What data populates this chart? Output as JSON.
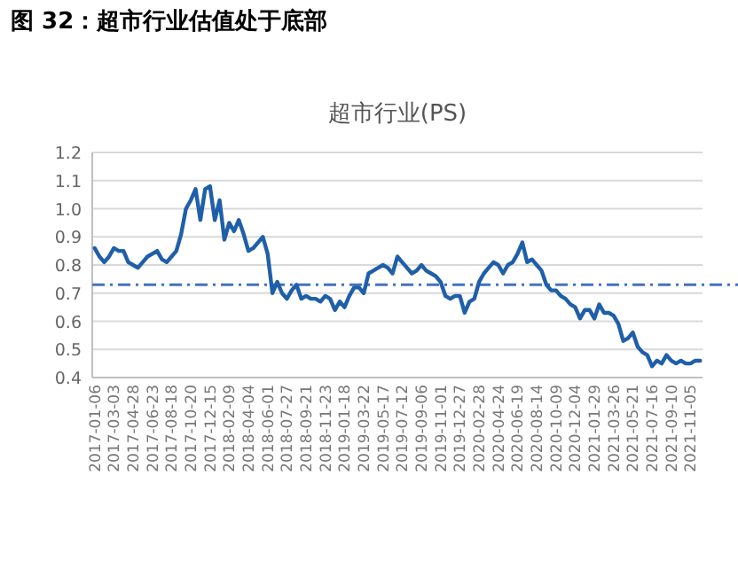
{
  "chart_data": {
    "type": "line",
    "title": "图 32：超市行业估值处于底部",
    "subtitle": "超市行业(PS)",
    "categories": [
      "2017-01-06",
      null,
      null,
      null,
      "2017-03-03",
      null,
      null,
      null,
      "2017-04-28",
      null,
      null,
      null,
      "2017-06-23",
      null,
      null,
      null,
      "2017-08-18",
      null,
      null,
      null,
      "2017-10-20",
      null,
      null,
      null,
      "2017-12-15",
      null,
      null,
      null,
      "2018-02-09",
      null,
      null,
      null,
      "2018-04-04",
      null,
      null,
      null,
      "2018-06-01",
      null,
      null,
      null,
      "2018-07-27",
      null,
      null,
      null,
      "2018-09-21",
      null,
      null,
      null,
      "2018-11-23",
      null,
      null,
      null,
      "2019-01-18",
      null,
      null,
      null,
      "2019-03-22",
      null,
      null,
      null,
      "2019-05-17",
      null,
      null,
      null,
      "2019-07-12",
      null,
      null,
      null,
      "2019-09-06",
      null,
      null,
      null,
      "2019-11-01",
      null,
      null,
      null,
      "2019-12-27",
      null,
      null,
      null,
      "2020-02-28",
      null,
      null,
      null,
      "2020-04-24",
      null,
      null,
      null,
      "2020-06-19",
      null,
      null,
      null,
      "2020-08-14",
      null,
      null,
      null,
      "2020-10-09",
      null,
      null,
      null,
      "2020-12-04",
      null,
      null,
      null,
      "2021-01-29",
      null,
      null,
      null,
      "2021-03-26",
      null,
      null,
      null,
      "2021-05-21",
      null,
      null,
      null,
      "2021-07-16",
      null,
      null,
      null,
      "2021-09-10",
      null,
      null,
      null,
      "2021-11-05",
      null,
      null
    ],
    "series": [
      {
        "color": "#1f5faa",
        "values": [
          0.86,
          0.83,
          0.81,
          0.83,
          0.86,
          0.85,
          0.85,
          0.81,
          0.8,
          0.79,
          0.81,
          0.83,
          0.84,
          0.85,
          0.82,
          0.81,
          0.83,
          0.85,
          0.91,
          1.0,
          1.03,
          1.07,
          0.96,
          1.07,
          1.08,
          0.96,
          1.03,
          0.89,
          0.95,
          0.92,
          0.96,
          0.91,
          0.85,
          0.86,
          0.88,
          0.9,
          0.84,
          0.7,
          0.74,
          0.7,
          0.68,
          0.71,
          0.73,
          0.68,
          0.69,
          0.68,
          0.68,
          0.67,
          0.69,
          0.68,
          0.64,
          0.67,
          0.65,
          0.69,
          0.72,
          0.72,
          0.7,
          0.77,
          0.78,
          0.79,
          0.8,
          0.79,
          0.77,
          0.83,
          0.81,
          0.79,
          0.77,
          0.78,
          0.8,
          0.78,
          0.77,
          0.76,
          0.74,
          0.69,
          0.68,
          0.69,
          0.69,
          0.63,
          0.67,
          0.68,
          0.74,
          0.77,
          0.79,
          0.81,
          0.8,
          0.77,
          0.8,
          0.81,
          0.84,
          0.88,
          0.81,
          0.82,
          0.8,
          0.78,
          0.73,
          0.71,
          0.71,
          0.69,
          0.68,
          0.66,
          0.65,
          0.61,
          0.64,
          0.64,
          0.61,
          0.66,
          0.63,
          0.63,
          0.62,
          0.59,
          0.53,
          0.54,
          0.56,
          0.51,
          0.49,
          0.48,
          0.44,
          0.46,
          0.45,
          0.48,
          0.46,
          0.45,
          0.46,
          0.45,
          0.45,
          0.46,
          0.46
        ]
      }
    ],
    "ylim": [
      0.4,
      1.2
    ],
    "yticks": [
      {
        "value": 0.4,
        "label": "0.4"
      },
      {
        "value": 0.5,
        "label": "0.5"
      },
      {
        "value": 0.6,
        "label": "0.6"
      },
      {
        "value": 0.7,
        "label": "0.7"
      },
      {
        "value": 0.8,
        "label": "0.8"
      },
      {
        "value": 0.9,
        "label": "0.9"
      },
      {
        "value": 1.0,
        "label": "1.0"
      },
      {
        "value": 1.1,
        "label": "1.1"
      },
      {
        "value": 1.2,
        "label": "1.2"
      }
    ],
    "ref_lines": [
      {
        "axis": "y",
        "value": 0.73,
        "color": "#4472c4",
        "line_style": "dashdot"
      }
    ],
    "grid": "y",
    "marker": "none",
    "line_style": "solid"
  }
}
